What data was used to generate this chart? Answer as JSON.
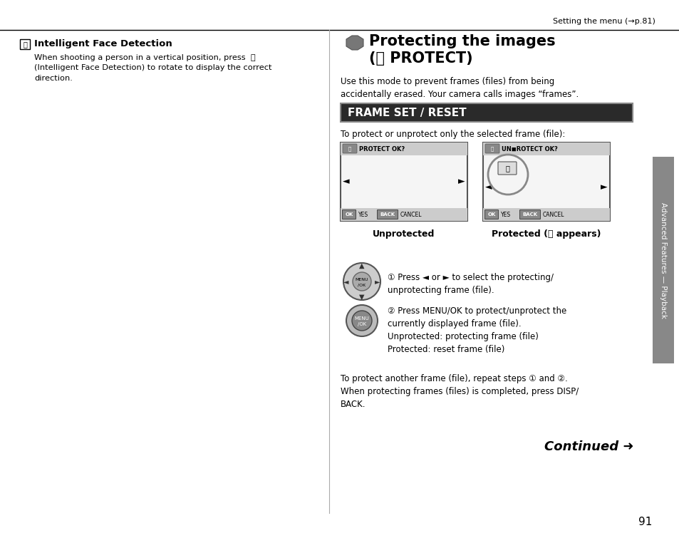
{
  "bg_color": "#ffffff",
  "page_num": "91",
  "top_right_text": "Setting the menu (→p.81)",
  "left_section": {
    "heading": "Intelligent Face Detection",
    "body": "When shooting a person in a vertical position, press  ⓠ\n(Intelligent Face Detection) to rotate to display the correct\ndirection."
  },
  "right_section": {
    "title_line1": "Protecting the images",
    "title_line2": "(⒡ PROTECT)",
    "body1": "Use this mode to prevent frames (files) from being\naccidentally erased. Your camera calls images “frames”.",
    "frame_set_label": "FRAME SET / RESET",
    "protect_subtitle": "To protect or unprotect only the selected frame (file):",
    "unprotected_label": "Unprotected",
    "protected_label": "Protected (⒡ appears)",
    "step1_num": "①",
    "step1_text": "Press ◄ or ► to select the protecting/\nunprotecting frame (file).",
    "step2_num": "②",
    "step2_text": "Press MENU/OK to protect/unprotect the\ncurrently displayed frame (file).\nUnprotected: protecting frame (file)\nProtected: reset frame (file)",
    "footer1": "To protect another frame (file), repeat steps ① and ②.",
    "footer2": "When protecting frames (files) is completed, press DISP/\nBACK.",
    "continued": "Continued ➜"
  },
  "sidebar_text": "Advanced Features — Playback",
  "divider_color": "#aaaaaa",
  "frame_set_bg": "#2a2a2a",
  "frame_set_border": "#888888",
  "screen_border": "#555555",
  "screen_bg": "#f5f5f5",
  "screen_topbar_bg": "#cccccc",
  "screen_bottombar_bg": "#cccccc",
  "sidebar_color": "#888888"
}
